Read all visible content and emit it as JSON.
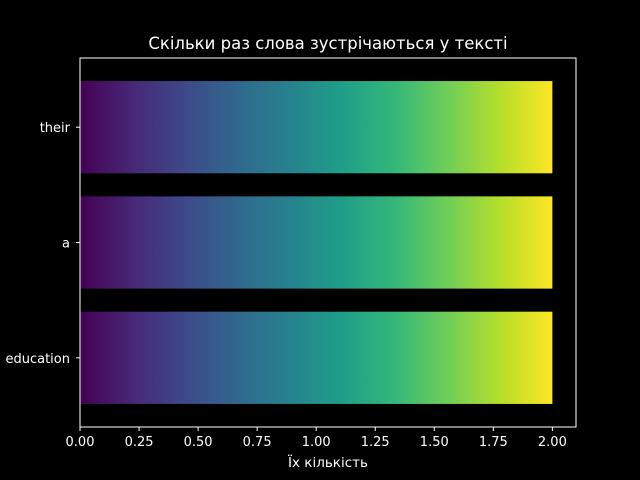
{
  "chart_data": {
    "type": "bar",
    "orientation": "horizontal",
    "title": "Скільки раз слова зустрічаються у тексті",
    "xlabel": "Їх кількість",
    "ylabel": "",
    "categories": [
      "education",
      "a",
      "their"
    ],
    "values": [
      2,
      2,
      2
    ],
    "xlim": [
      0,
      2.1
    ],
    "xticks": [
      "0.00",
      "0.25",
      "0.50",
      "0.75",
      "1.00",
      "1.25",
      "1.50",
      "1.75",
      "2.00"
    ],
    "grid": false,
    "bar_fill": "viridis horizontal gradient",
    "gradient_colors": [
      "#440154",
      "#482777",
      "#3e4989",
      "#31688e",
      "#26828e",
      "#1f9e89",
      "#35b779",
      "#6ece58",
      "#b5de2b",
      "#fde725"
    ],
    "background_color": "#000000",
    "text_color": "#ffffff"
  }
}
